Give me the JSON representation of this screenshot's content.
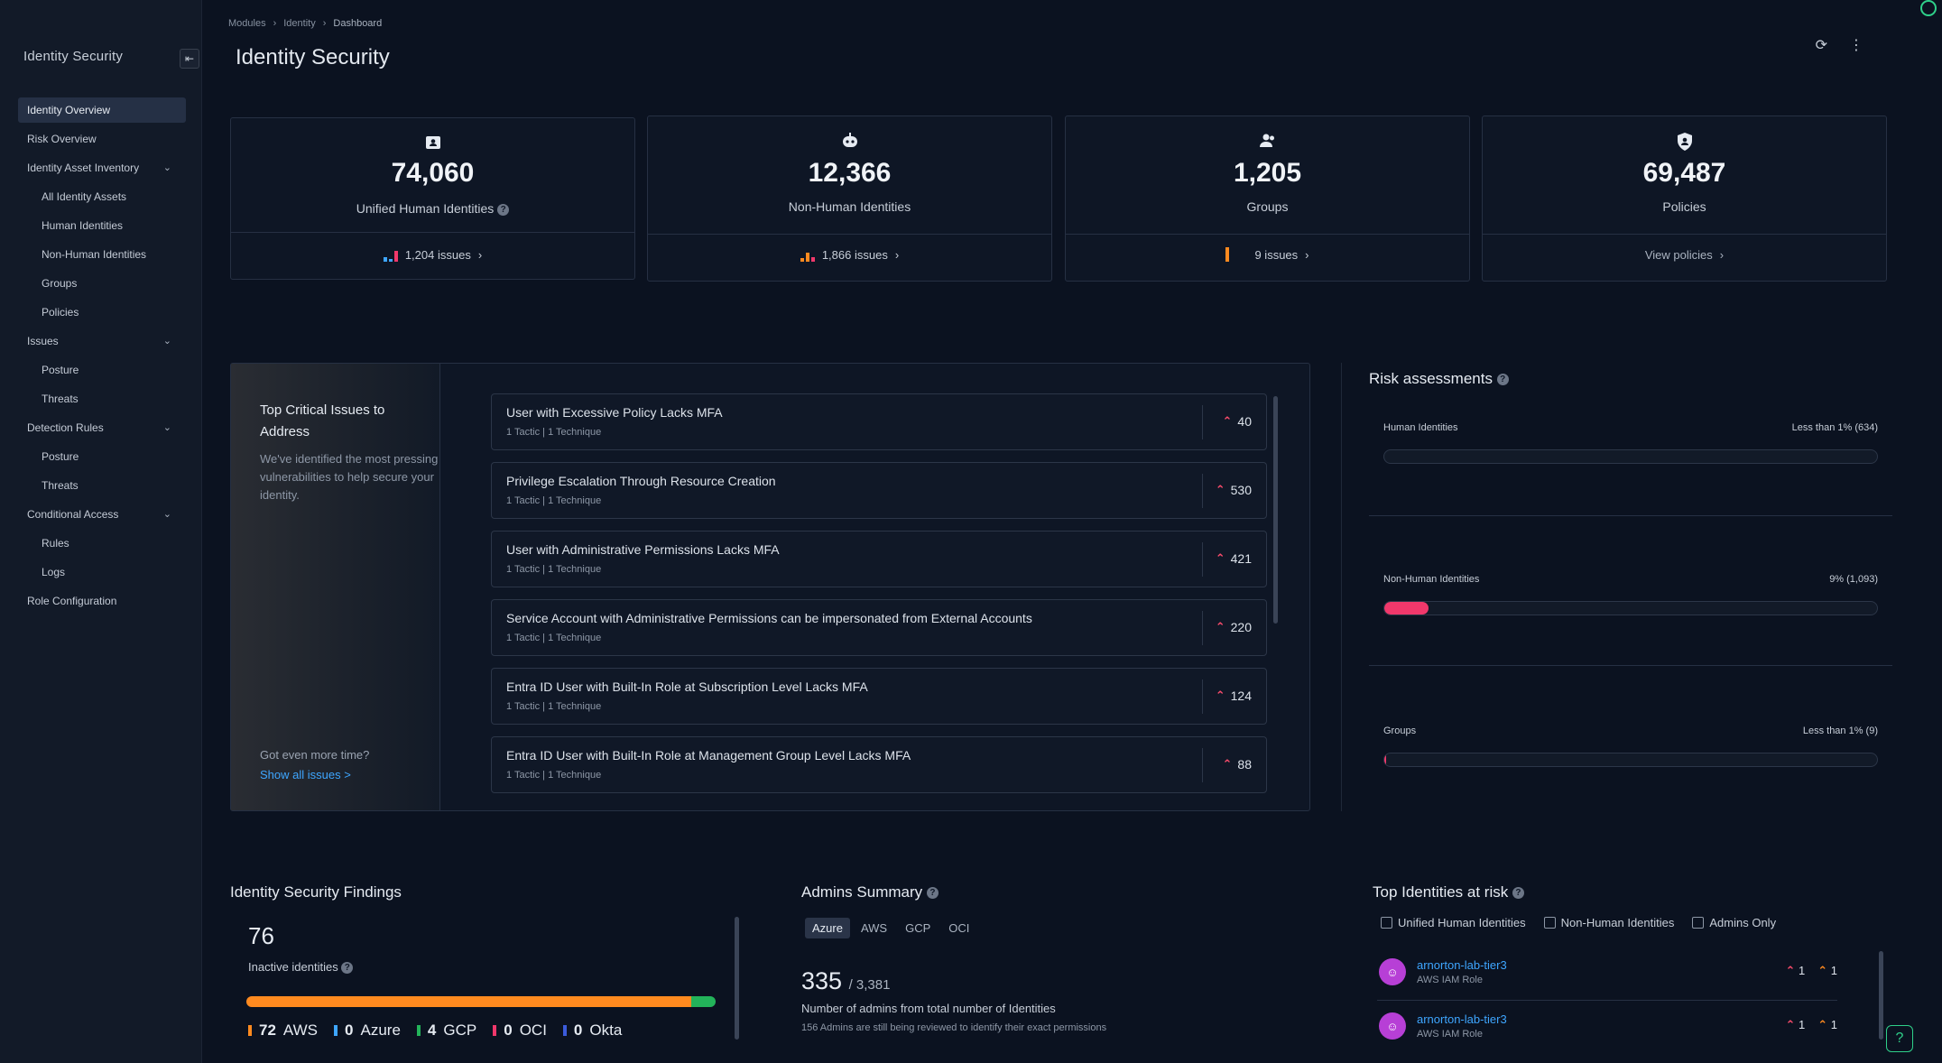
{
  "app": {
    "title": "Identity Security"
  },
  "sidebar": {
    "items": [
      {
        "label": "Identity Overview"
      },
      {
        "label": "Risk Overview"
      },
      {
        "label": "Identity Asset Inventory"
      },
      {
        "label": "All Identity Assets"
      },
      {
        "label": "Human Identities"
      },
      {
        "label": "Non-Human Identities"
      },
      {
        "label": "Groups"
      },
      {
        "label": "Policies"
      },
      {
        "label": "Issues"
      },
      {
        "label": "Posture"
      },
      {
        "label": "Threats"
      },
      {
        "label": "Detection Rules"
      },
      {
        "label": "Posture"
      },
      {
        "label": "Threats"
      },
      {
        "label": "Conditional Access"
      },
      {
        "label": "Rules"
      },
      {
        "label": "Logs"
      },
      {
        "label": "Role Configuration"
      }
    ]
  },
  "breadcrumb": {
    "items": [
      "Modules",
      "Identity",
      "Dashboard"
    ]
  },
  "page": {
    "title": "Identity Security"
  },
  "stats": [
    {
      "value": "74,060",
      "label": "Unified Human Identities",
      "footer": "1,204 issues",
      "icon": "id-card-icon"
    },
    {
      "value": "12,366",
      "label": "Non-Human Identities",
      "footer": "1,866 issues",
      "icon": "robot-icon"
    },
    {
      "value": "1,205",
      "label": "Groups",
      "footer": "9 issues",
      "icon": "users-icon"
    },
    {
      "value": "69,487",
      "label": "Policies",
      "footer": "View policies",
      "icon": "shield-user-icon"
    }
  ],
  "critical": {
    "title": "Top Critical Issues to Address",
    "description": "We've identified the most pressing vulnerabilities to help secure your identity.",
    "more": "Got even more time?",
    "link": "Show all issues >",
    "issues": [
      {
        "title": "User with Excessive Policy Lacks MFA",
        "meta": "1 Tactic  |  1 Technique",
        "count": "40"
      },
      {
        "title": "Privilege Escalation Through Resource Creation",
        "meta": "1 Tactic  |  1 Technique",
        "count": "530"
      },
      {
        "title": "User with Administrative Permissions Lacks MFA",
        "meta": "1 Tactic  |  1 Technique",
        "count": "421"
      },
      {
        "title": "Service Account with Administrative Permissions can be impersonated from External Accounts",
        "meta": "1 Tactic  |  1 Technique",
        "count": "220"
      },
      {
        "title": "Entra ID User with Built-In Role at Subscription Level Lacks MFA",
        "meta": "1 Tactic  |  1 Technique",
        "count": "124"
      },
      {
        "title": "Entra ID User with Built-In Role at Management Group Level Lacks MFA",
        "meta": "1 Tactic  |  1 Technique",
        "count": "88"
      }
    ]
  },
  "risk": {
    "title": "Risk assessments",
    "rows": [
      {
        "name": "Human Identities",
        "pct": "Less than 1%  (634)",
        "fill": 0.0
      },
      {
        "name": "Non-Human Identities",
        "pct": "9%  (1,093)",
        "fill": 0.09
      },
      {
        "name": "Groups",
        "pct": "Less than 1%  (9)",
        "fill": 0.003
      }
    ]
  },
  "findings": {
    "title": "Identity Security Findings",
    "value": "76",
    "label": "Inactive identities",
    "segments": [
      {
        "name": "AWS",
        "value": "72",
        "color": "#ff8a1f"
      },
      {
        "name": "Azure",
        "value": "0",
        "color": "#3ea6ff"
      },
      {
        "name": "GCP",
        "value": "4",
        "color": "#23b35a"
      },
      {
        "name": "OCI",
        "value": "0",
        "color": "#f0386b"
      },
      {
        "name": "Okta",
        "value": "0",
        "color": "#3b5bdb"
      }
    ]
  },
  "admins": {
    "title": "Admins Summary",
    "tabs": [
      "Azure",
      "AWS",
      "GCP",
      "OCI"
    ],
    "count": "335",
    "total": "/ 3,381",
    "sub": "Number of admins from total number of Identities",
    "note": "156 Admins are still being reviewed to identify their exact permissions"
  },
  "top_identities": {
    "title": "Top Identities at risk",
    "filters": [
      "Unified Human Identities",
      "Non-Human Identities",
      "Admins Only"
    ],
    "rows": [
      {
        "name": "arnorton-lab-tier3",
        "type": "AWS IAM Role",
        "critical": "1",
        "high": "1"
      },
      {
        "name": "arnorton-lab-tier3",
        "type": "AWS IAM Role",
        "critical": "1",
        "high": "1"
      }
    ]
  }
}
